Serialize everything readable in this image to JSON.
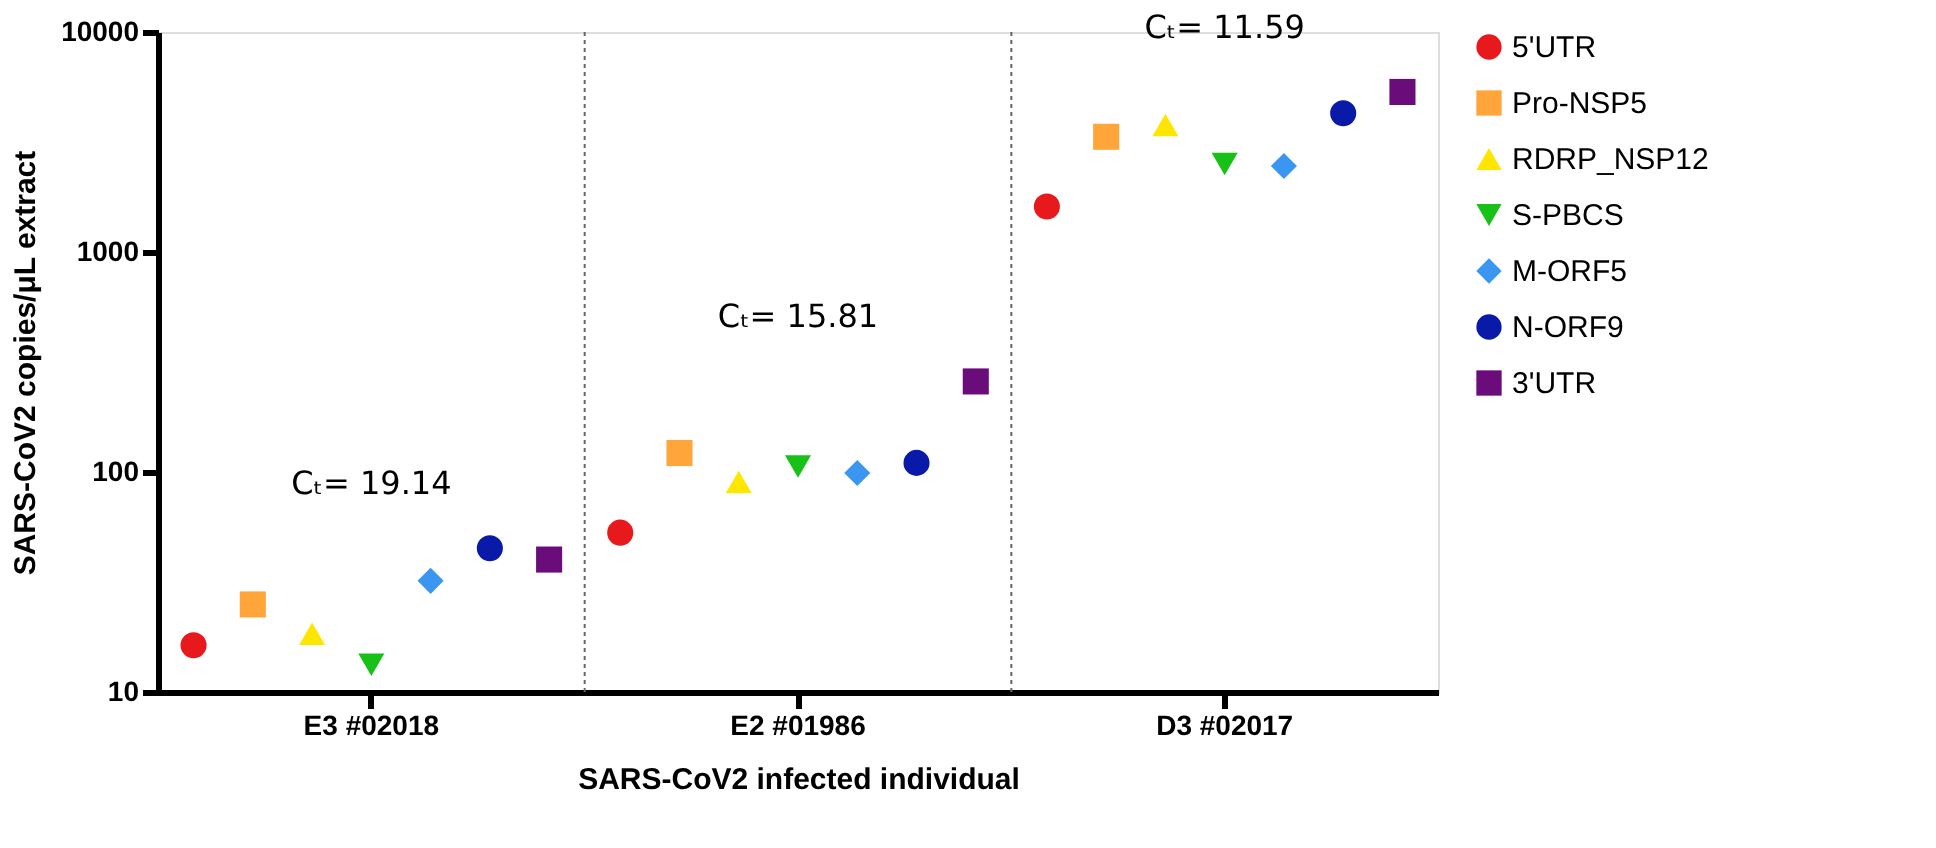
{
  "chart_data": {
    "type": "scatter",
    "xlabel": "SARS-CoV2 infected individual",
    "ylabel": "SARS-CoV2 copies/μL extract",
    "categories": [
      "E3 #02018",
      "E2 #01986",
      "D3 #02017"
    ],
    "log": true,
    "ylim": [
      10,
      10000
    ],
    "yticks": [
      10,
      100,
      1000,
      10000
    ],
    "grid": "x",
    "legend": "right",
    "series": [
      {
        "name": "5'UTR",
        "color": "#e8191d",
        "marker": "circle",
        "values": [
          16.3,
          53,
          1610
        ]
      },
      {
        "name": "Pro-NSP5",
        "color": "#ffa53a",
        "marker": "square",
        "values": [
          25,
          122,
          3340
        ]
      },
      {
        "name": "RDRP_NSP12",
        "color": "#ffe600",
        "marker": "triangle",
        "values": [
          18.4,
          90,
          3780
        ]
      },
      {
        "name": "S-PBCS",
        "color": "#17c117",
        "marker": "triangle-down",
        "values": [
          13.3,
          106,
          2510
        ]
      },
      {
        "name": "M-ORF5",
        "color": "#3a96f0",
        "marker": "diamond",
        "values": [
          32,
          99,
          2460
        ]
      },
      {
        "name": "N-ORF9",
        "color": "#0a1aa8",
        "marker": "circle",
        "values": [
          45,
          110,
          4270
        ]
      },
      {
        "name": "3'UTR",
        "color": "#6a0d7a",
        "marker": "square",
        "values": [
          40,
          258,
          5340
        ]
      }
    ],
    "annotations": [
      "Cₜ= 19.14",
      "Cₜ= 15.81",
      "Cₜ= 11.59"
    ]
  }
}
